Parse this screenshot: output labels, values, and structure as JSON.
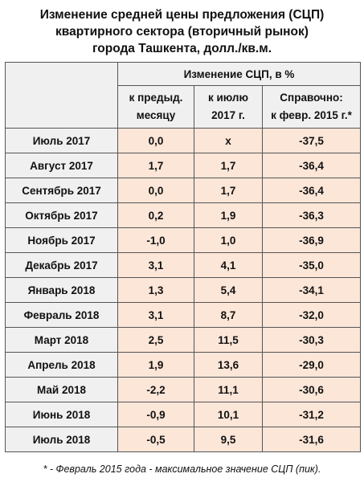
{
  "title_lines": [
    "Изменение средней цены предложения (СЦП)",
    "квартирного сектора (вторичный рынок)",
    "города Ташкента, долл./кв.м."
  ],
  "table": {
    "group_header": "Изменение СЦП, в %",
    "columns": [
      {
        "line1": "к предыд.",
        "line2": "месяцу"
      },
      {
        "line1": "к июлю",
        "line2": "2017 г."
      },
      {
        "line1": "Справочно:",
        "line2": "к февр. 2015 г.*"
      }
    ],
    "rows": [
      {
        "month": "Июль 2017",
        "prev": "0,0",
        "jul2017": "x",
        "feb2015": "-37,5"
      },
      {
        "month": "Август 2017",
        "prev": "1,7",
        "jul2017": "1,7",
        "feb2015": "-36,4"
      },
      {
        "month": "Сентябрь 2017",
        "prev": "0,0",
        "jul2017": "1,7",
        "feb2015": "-36,4"
      },
      {
        "month": "Октябрь 2017",
        "prev": "0,2",
        "jul2017": "1,9",
        "feb2015": "-36,3"
      },
      {
        "month": "Ноябрь 2017",
        "prev": "-1,0",
        "jul2017": "1,0",
        "feb2015": "-36,9"
      },
      {
        "month": "Декабрь 2017",
        "prev": "3,1",
        "jul2017": "4,1",
        "feb2015": "-35,0"
      },
      {
        "month": "Январь 2018",
        "prev": "1,3",
        "jul2017": "5,4",
        "feb2015": "-34,1"
      },
      {
        "month": "Февраль 2018",
        "prev": "3,1",
        "jul2017": "8,7",
        "feb2015": "-32,0"
      },
      {
        "month": "Март 2018",
        "prev": "2,5",
        "jul2017": "11,5",
        "feb2015": "-30,3"
      },
      {
        "month": "Апрель 2018",
        "prev": "1,9",
        "jul2017": "13,6",
        "feb2015": "-29,0"
      },
      {
        "month": "Май 2018",
        "prev": "-2,2",
        "jul2017": "11,1",
        "feb2015": "-30,6"
      },
      {
        "month": "Июнь 2018",
        "prev": "-0,9",
        "jul2017": "10,1",
        "feb2015": "-31,2"
      },
      {
        "month": "Июль 2018",
        "prev": "-0,5",
        "jul2017": "9,5",
        "feb2015": "-31,6"
      }
    ]
  },
  "footnote": "* - Февраль 2015 года - максимальное значение СЦП (пик).",
  "colors": {
    "value_cell_bg": "#fce6d8",
    "header_bg": "#f0f0f0",
    "border": "#555555"
  }
}
